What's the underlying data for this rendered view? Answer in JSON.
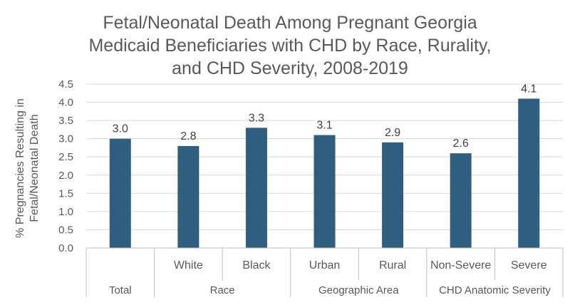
{
  "chart_data": {
    "type": "bar",
    "title": "Fetal/Neonatal Death Among Pregnant Georgia Medicaid Beneficiaries with CHD by Race, Rurality, and CHD Severity, 2008-2019",
    "title_lines": [
      "Fetal/Neonatal Death Among Pregnant Georgia",
      "Medicaid Beneficiaries with CHD by Race, Rurality,",
      "and CHD Severity, 2008-2019"
    ],
    "ylabel": "% Pregnancies Resulting in Fetal/Neonatal Death",
    "ylabel_lines": [
      "% Pregnancies Resulting in",
      "Fetal/Neonatal Death"
    ],
    "xlabel": "",
    "ylim": [
      0,
      4.5
    ],
    "yticks": [
      0,
      0.5,
      1.0,
      1.5,
      2.0,
      2.5,
      3.0,
      3.5,
      4.0,
      4.5
    ],
    "ytick_labels": [
      "0.0",
      "0.5",
      "1.0",
      "1.5",
      "2.0",
      "2.5",
      "3.0",
      "3.5",
      "4.0",
      "4.5"
    ],
    "grid": true,
    "bar_color": "#2e5f80",
    "categories": [
      "",
      "White",
      "Black",
      "Urban",
      "Rural",
      "Non-Severe",
      "Severe"
    ],
    "values": [
      3.0,
      2.8,
      3.3,
      3.1,
      2.9,
      2.6,
      4.1
    ],
    "data_labels": [
      "3.0",
      "2.8",
      "3.3",
      "3.1",
      "2.9",
      "2.6",
      "4.1"
    ],
    "groups": [
      {
        "label": "Total",
        "start": 0,
        "count": 1
      },
      {
        "label": "Race",
        "start": 1,
        "count": 2
      },
      {
        "label": "Geographic Area",
        "start": 3,
        "count": 2
      },
      {
        "label": "CHD Anatomic Severity",
        "start": 5,
        "count": 2
      }
    ]
  }
}
